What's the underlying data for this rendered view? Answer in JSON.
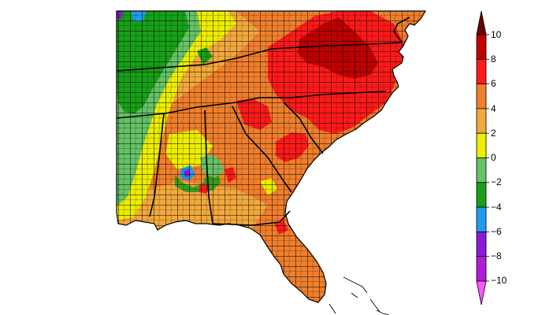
{
  "legend": {
    "tick_labels": [
      "10",
      "8",
      "6",
      "4",
      "2",
      "0",
      "−2",
      "−4",
      "−6",
      "−8",
      "−10"
    ],
    "bins": [
      {
        "range": "above 10",
        "color": "#6b0000"
      },
      {
        "range": "8 to 10",
        "color": "#c00000"
      },
      {
        "range": "6 to 8",
        "color": "#ff1a1a"
      },
      {
        "range": "4 to 6",
        "color": "#f07f2c"
      },
      {
        "range": "2 to 4",
        "color": "#f2a93b"
      },
      {
        "range": "0 to 2",
        "color": "#eded00"
      },
      {
        "range": "-2 to 0",
        "color": "#66c266"
      },
      {
        "range": "-4 to -2",
        "color": "#17a017"
      },
      {
        "range": "-6 to -4",
        "color": "#1f9bef"
      },
      {
        "range": "-8 to -6",
        "color": "#8a1ad6"
      },
      {
        "range": "-10 to -8",
        "color": "#b31ad8"
      },
      {
        "range": "below -10",
        "color": "#ff55ff"
      }
    ]
  },
  "map": {
    "region": "Southeastern United States",
    "boundaries": [
      "county",
      "state"
    ],
    "colors": {
      "border": "#000000",
      "water": "#ffffff"
    }
  }
}
